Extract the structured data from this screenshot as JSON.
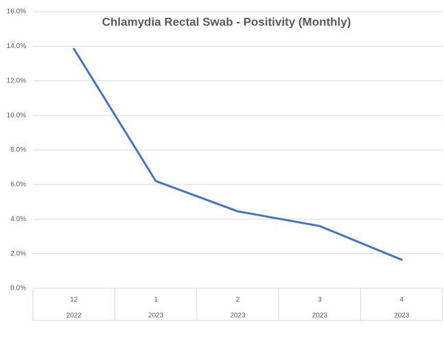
{
  "chart_data": {
    "type": "line",
    "title": "Chlamydia Rectal Swab - Positivity (Monthly)",
    "categories": [
      "12",
      "1",
      "2",
      "3",
      "4"
    ],
    "category_groups": [
      "2022",
      "2023",
      "2023",
      "2023",
      "2023"
    ],
    "series": [
      {
        "name": "Positivity",
        "color": "#4472c4",
        "values": [
          13.85,
          6.2,
          4.45,
          3.6,
          1.65
        ]
      }
    ],
    "ylim": [
      0,
      16
    ],
    "yticks": [
      {
        "value": 0,
        "label": "0.0%"
      },
      {
        "value": 2,
        "label": "2.0%"
      },
      {
        "value": 4,
        "label": "4.0%"
      },
      {
        "value": 6,
        "label": "6.0%"
      },
      {
        "value": 8,
        "label": "8.0%"
      },
      {
        "value": 10,
        "label": "10.0%"
      },
      {
        "value": 12,
        "label": "12.0%"
      },
      {
        "value": 14,
        "label": "14.0%"
      },
      {
        "value": 16,
        "label": "16.0%"
      }
    ],
    "grid": true
  }
}
